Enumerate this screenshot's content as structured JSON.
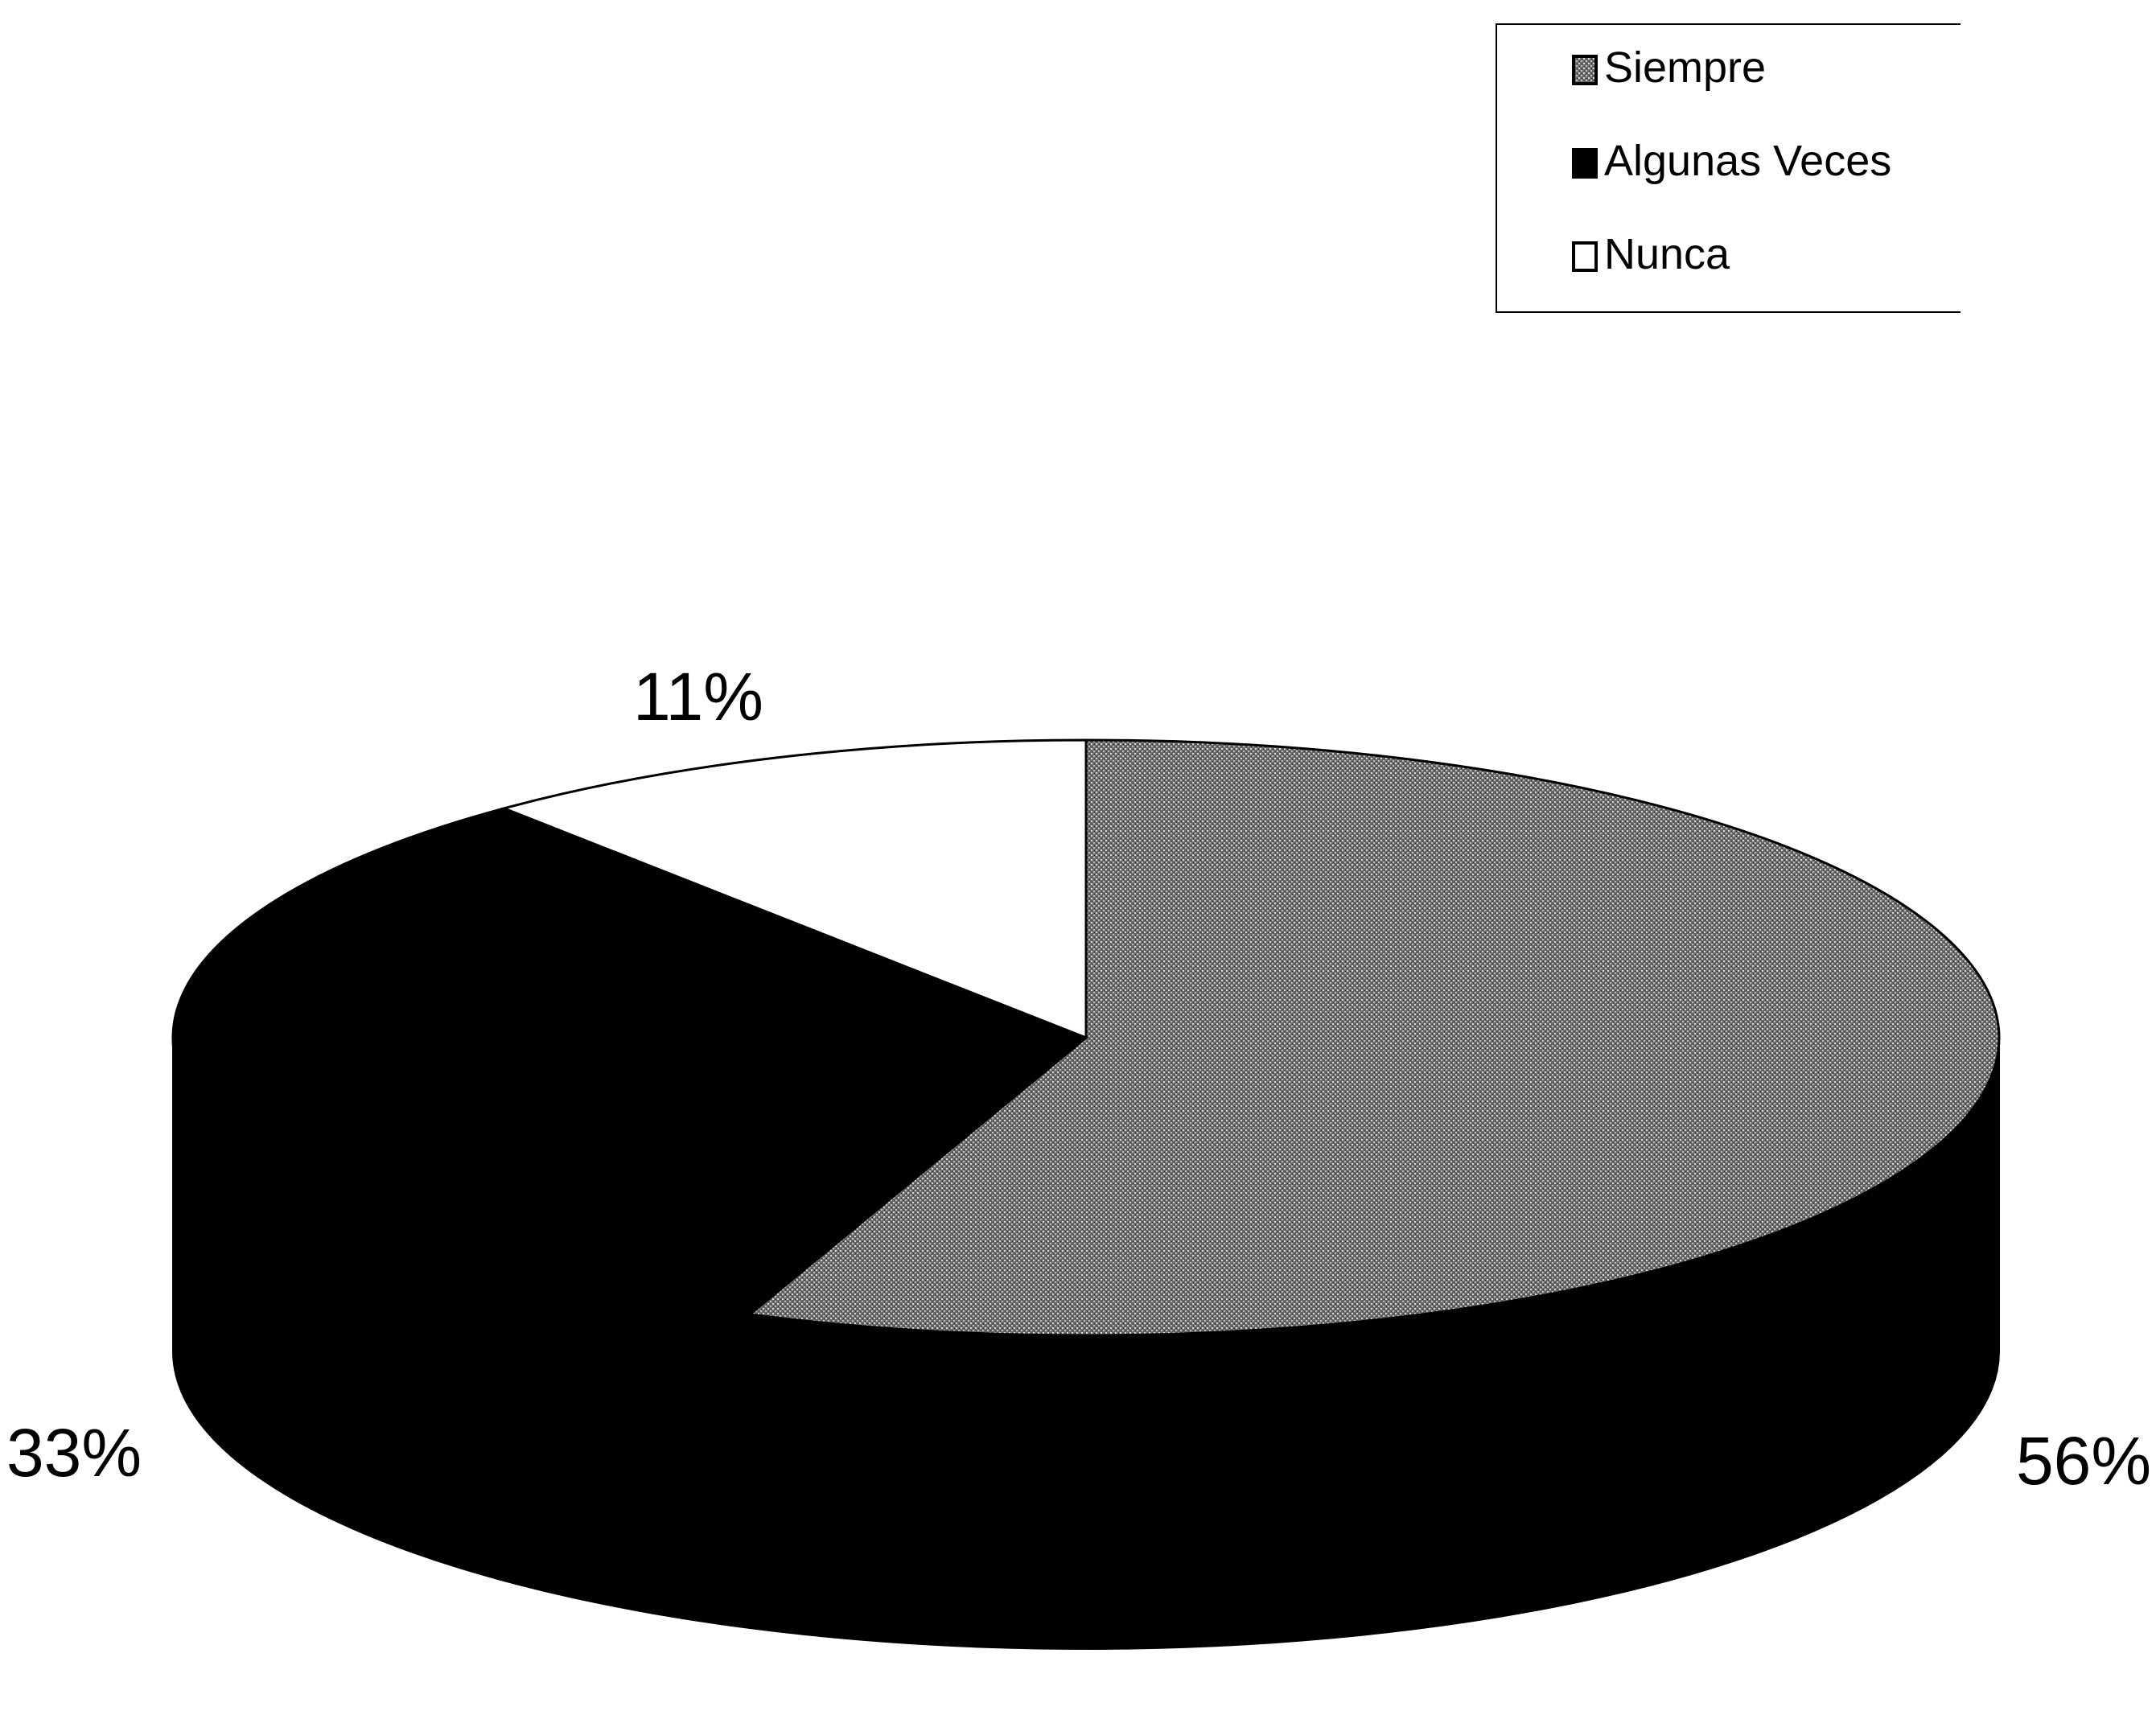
{
  "chart_data": {
    "type": "pie",
    "style": "3d-pie",
    "series": [
      {
        "name": "Siempre",
        "value": 56,
        "label": "56%",
        "color": "#8a8a8a",
        "pattern": "speckled-gray"
      },
      {
        "name": "Algunas Veces",
        "value": 33,
        "label": "33%",
        "color": "#000000",
        "pattern": "solid"
      },
      {
        "name": "Nunca",
        "value": 11,
        "label": "11%",
        "color": "#ffffff",
        "pattern": "solid"
      }
    ],
    "legend": {
      "position": "top-right",
      "entries": [
        "Siempre",
        "Algunas Veces",
        "Nunca"
      ]
    },
    "title": "",
    "unit": "%"
  }
}
